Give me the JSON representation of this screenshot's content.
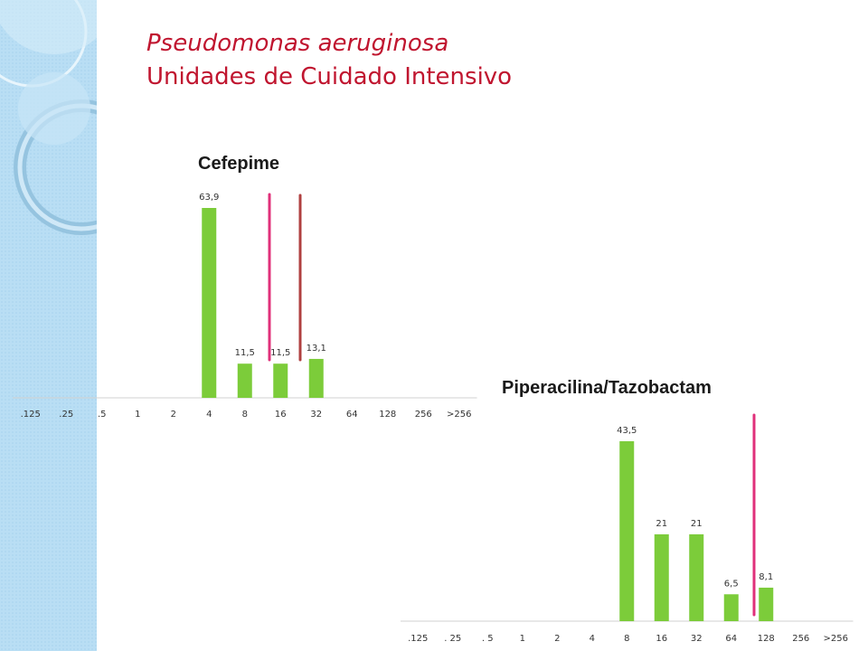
{
  "slide": {
    "title_line1": "Pseudomonas aeruginosa",
    "title_line2": "Unidades de Cuidado Intensivo"
  },
  "colors": {
    "title": "#c0152f",
    "bar": "#7ccc3a",
    "breakpoint_magenta": "#e0307a",
    "breakpoint_red": "#b04040",
    "decor_blue": "#b5dcf3"
  },
  "chart_data": [
    {
      "type": "bar",
      "title": "Cefepime",
      "categories": [
        ".125",
        ".25",
        ".5",
        "1",
        "2",
        "4",
        "8",
        "16",
        "32",
        "64",
        "128",
        "256",
        ">256"
      ],
      "values": [
        null,
        null,
        null,
        null,
        null,
        63.9,
        11.5,
        11.5,
        13.1,
        null,
        null,
        null,
        null
      ],
      "data_labels": [
        "",
        "",
        "",
        "",
        "",
        "63,9",
        "11,5",
        "11,5",
        "13,1",
        "",
        "",
        "",
        ""
      ],
      "breakpoint_lines": [
        {
          "between": [
            "8",
            "16"
          ],
          "color": "magenta"
        },
        {
          "between": [
            "16",
            "32"
          ],
          "color": "red"
        }
      ]
    },
    {
      "type": "bar",
      "title": "Piperacilina/Tazobactam",
      "categories": [
        ".125",
        ". 25",
        ". 5",
        "1",
        "2",
        "4",
        "8",
        "16",
        "32",
        "64",
        "128",
        "256",
        ">256"
      ],
      "values": [
        null,
        null,
        null,
        null,
        null,
        null,
        43.5,
        21,
        21,
        6.5,
        8.1,
        null,
        null
      ],
      "data_labels": [
        "",
        "",
        "",
        "",
        "",
        "",
        "43,5",
        "21",
        "21",
        "6,5",
        "8,1",
        "",
        ""
      ],
      "breakpoint_lines": [
        {
          "between": [
            "64",
            "128"
          ],
          "color": "magenta"
        }
      ]
    }
  ]
}
